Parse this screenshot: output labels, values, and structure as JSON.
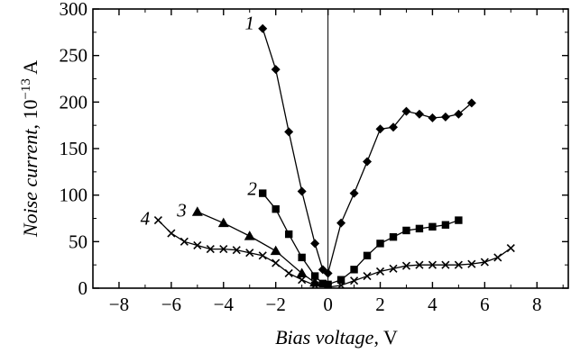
{
  "chart_data": {
    "type": "line",
    "title": "",
    "xlabel": "Bias voltage",
    "xlabel_unit": ", V",
    "ylabel": "Noise current",
    "ylabel_unit_base": ", 10",
    "ylabel_unit_exp": "−13",
    "ylabel_unit_tail": " A",
    "xlim": [
      -9,
      9.2
    ],
    "ylim": [
      0,
      300
    ],
    "xticks": [
      -8,
      -6,
      -4,
      -2,
      0,
      2,
      4,
      6,
      8
    ],
    "xtick_labels": [
      "−8",
      "−6",
      "−4",
      "−2",
      "0",
      "2",
      "4",
      "6",
      "8"
    ],
    "yticks": [
      0,
      50,
      100,
      150,
      200,
      250,
      300
    ],
    "ytick_labels": [
      "0",
      "50",
      "100",
      "150",
      "200",
      "250",
      "300"
    ],
    "grid": false,
    "zero_line": true,
    "series": [
      {
        "name": "1",
        "marker": "diamond",
        "label_at": [
          -3.0,
          278
        ],
        "x": [
          -2.5,
          -2.0,
          -1.5,
          -1.0,
          -0.5,
          -0.2,
          0.0,
          0.5,
          1.0,
          1.5,
          2.0,
          2.5,
          3.0,
          3.5,
          4.0,
          4.5,
          5.0,
          5.5
        ],
        "y": [
          279,
          235,
          168,
          104,
          48,
          20,
          16,
          70,
          102,
          136,
          171,
          173,
          190,
          187,
          183,
          184,
          187,
          199
        ]
      },
      {
        "name": "2",
        "marker": "square",
        "label_at": [
          -2.9,
          100
        ],
        "x": [
          -2.5,
          -2.0,
          -1.5,
          -1.0,
          -0.5,
          -0.2,
          0.0,
          0.5,
          1.0,
          1.5,
          2.0,
          2.5,
          3.0,
          3.5,
          4.0,
          4.5,
          5.0
        ],
        "y": [
          102,
          85,
          58,
          33,
          13,
          5,
          4,
          9,
          20,
          35,
          48,
          55,
          62,
          64,
          66,
          68,
          73
        ]
      },
      {
        "name": "3",
        "marker": "triangle",
        "label_at": [
          -5.6,
          77
        ],
        "x": [
          -5.0,
          -4.0,
          -3.0,
          -2.0,
          -1.0,
          -0.5,
          0.0
        ],
        "y": [
          82,
          70,
          56,
          40,
          16,
          6,
          2
        ]
      },
      {
        "name": "4",
        "marker": "cross",
        "label_at": [
          -7.0,
          68
        ],
        "x": [
          -6.5,
          -6.0,
          -5.5,
          -5.0,
          -4.5,
          -4.0,
          -3.5,
          -3.0,
          -2.5,
          -2.0,
          -1.5,
          -1.0,
          -0.5,
          0.0,
          0.5,
          1.0,
          1.5,
          2.0,
          2.5,
          3.0,
          3.5,
          4.0,
          4.5,
          5.0,
          5.5,
          6.0,
          6.5,
          7.0
        ],
        "y": [
          73,
          59,
          50,
          46,
          42,
          42,
          41,
          38,
          35,
          27,
          16,
          9,
          3,
          1,
          3,
          8,
          13,
          18,
          21,
          24,
          25,
          25,
          25,
          25,
          26,
          28,
          33,
          43
        ]
      }
    ]
  }
}
